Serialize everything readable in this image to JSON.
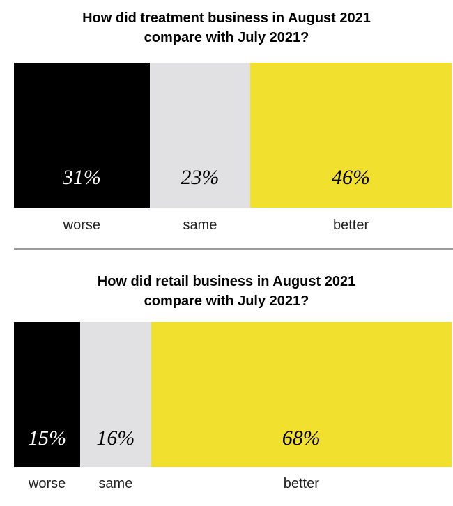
{
  "chart_data": [
    {
      "type": "bar",
      "stacked": true,
      "orientation": "horizontal-100%",
      "title": "How did treatment business in August 2021 compare with July 2021?",
      "categories": [
        "worse",
        "same",
        "better"
      ],
      "values": [
        31,
        23,
        46
      ],
      "value_labels": [
        "31%",
        "23%",
        "46%"
      ],
      "colors": [
        "#000000",
        "#e1e1e3",
        "#f1e12e"
      ],
      "label_colors": [
        "#ffffff",
        "#000000",
        "#000000"
      ],
      "unit": "%"
    },
    {
      "type": "bar",
      "stacked": true,
      "orientation": "horizontal-100%",
      "title": "How did retail business in August 2021 compare with July 2021?",
      "categories": [
        "worse",
        "same",
        "better"
      ],
      "values": [
        15,
        16,
        68
      ],
      "value_labels": [
        "15%",
        "16%",
        "68%"
      ],
      "colors": [
        "#000000",
        "#e1e1e3",
        "#f1e12e"
      ],
      "label_colors": [
        "#ffffff",
        "#000000",
        "#000000"
      ],
      "unit": "%"
    }
  ]
}
